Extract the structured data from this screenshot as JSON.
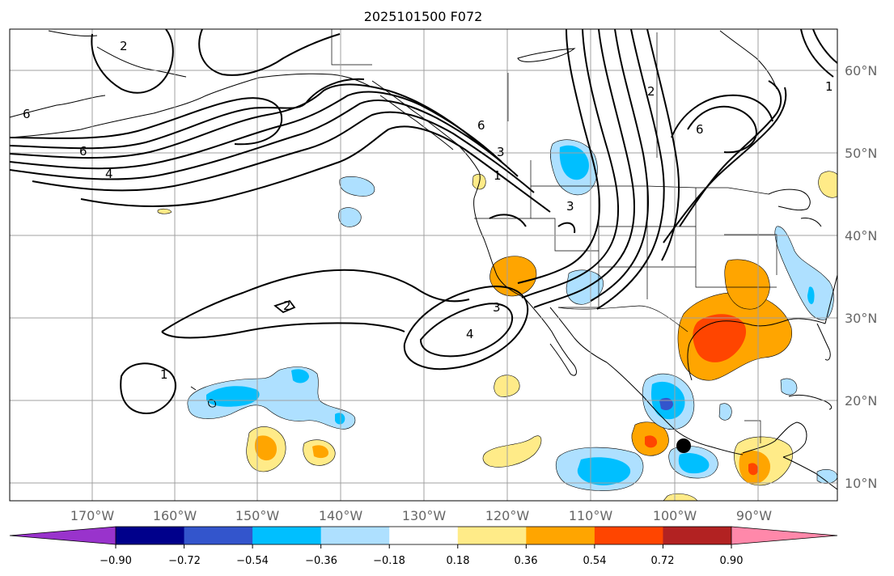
{
  "title": "2025101500 F072",
  "map": {
    "longitude_labels": [
      "170°W",
      "160°W",
      "150°W",
      "140°W",
      "130°W",
      "120°W",
      "110°W",
      "100°W",
      "90°W"
    ],
    "latitude_labels": [
      "60°N",
      "50°N",
      "40°N",
      "30°N",
      "20°N",
      "10°N"
    ],
    "contour_labels": [
      "2",
      "6",
      "4",
      "6",
      "3",
      "1",
      "3",
      "3",
      "4",
      "2",
      "1",
      "6",
      "6",
      "2",
      "1"
    ]
  },
  "colorbar": {
    "tick_labels": [
      "−0.90",
      "−0.72",
      "−0.54",
      "−0.36",
      "−0.18",
      "0.18",
      "0.36",
      "0.54",
      "0.72",
      "0.90"
    ],
    "colors": [
      "#9933cc",
      "#00008b",
      "#3355cc",
      "#00bfff",
      "#aee0ff",
      "#ffffff",
      "#ffeb88",
      "#ffa500",
      "#ff4500",
      "#b22222",
      "#ff88aa"
    ]
  },
  "colors": {
    "grid": "#a0a0a0",
    "coast": "#000000",
    "marker": "#000000"
  }
}
